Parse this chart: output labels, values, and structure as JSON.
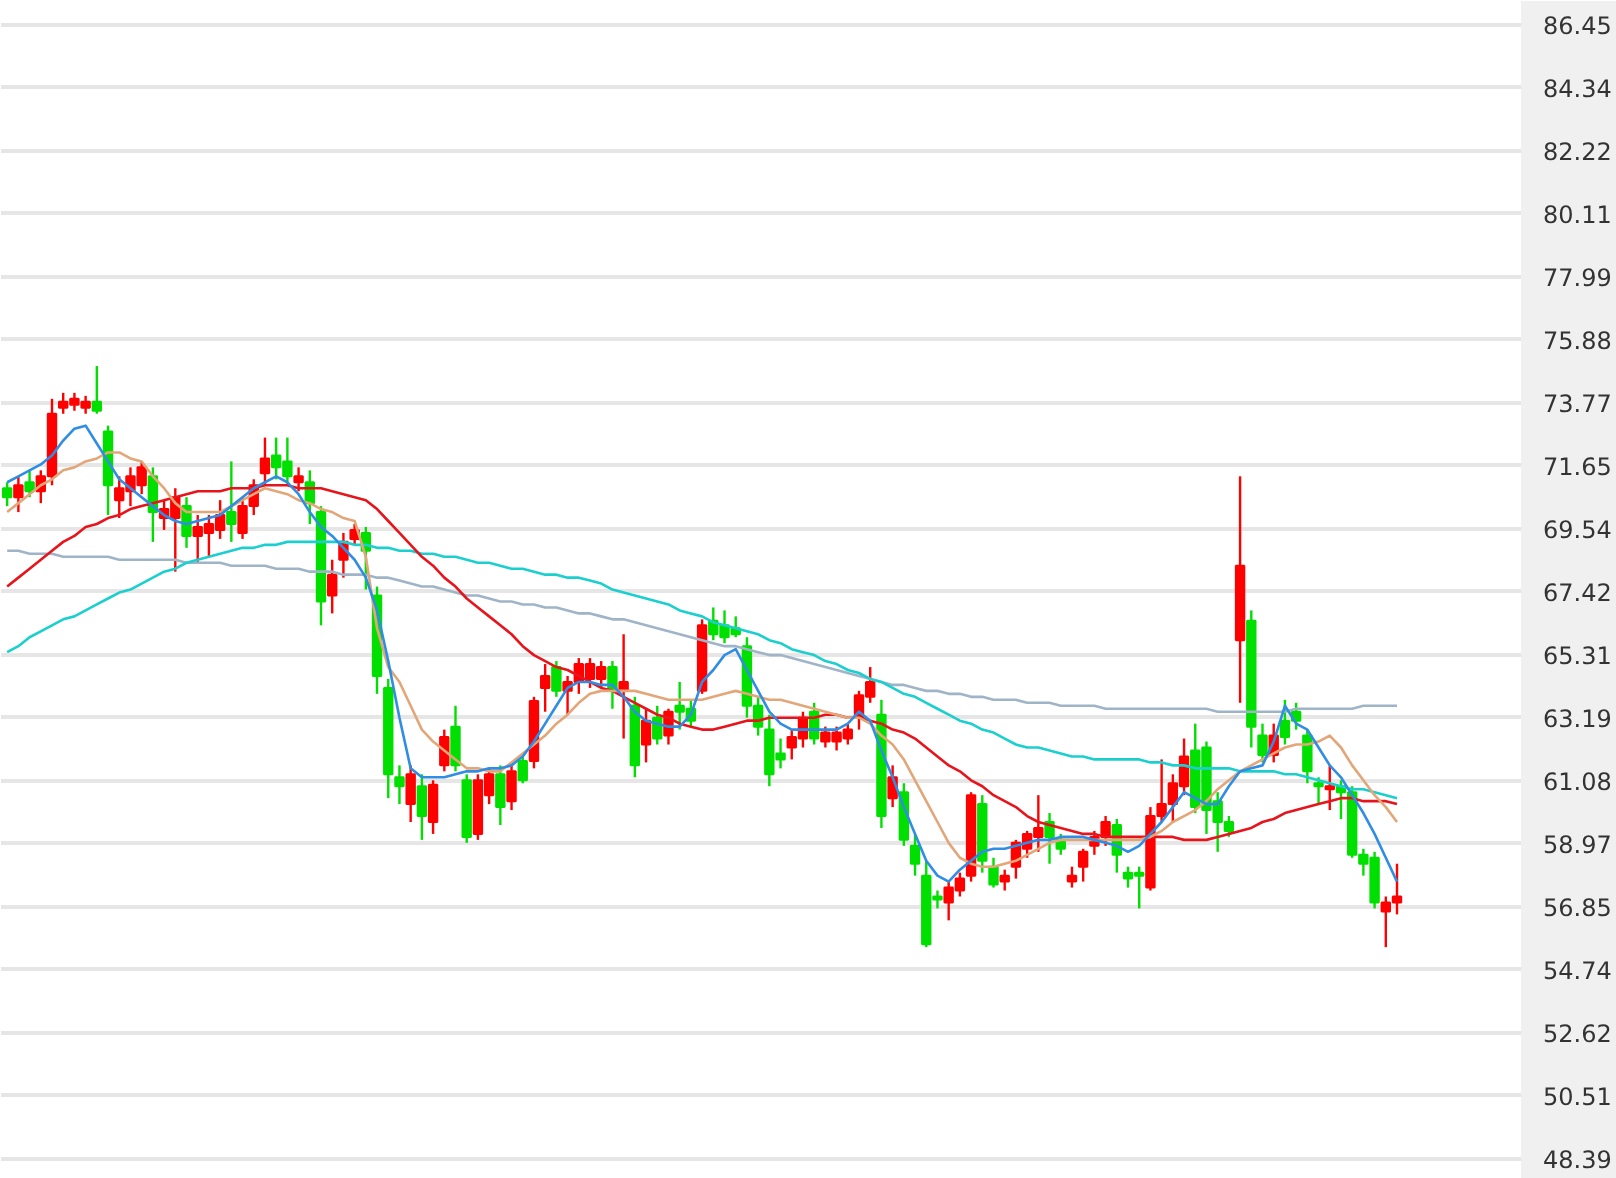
{
  "chart_data": {
    "type": "candlestick",
    "categories": [
      null,
      null,
      null,
      null,
      null,
      null,
      null,
      null,
      null,
      null,
      null,
      null,
      null,
      null,
      null,
      null,
      null,
      null,
      null,
      null,
      null,
      null,
      null,
      null,
      null,
      null,
      null,
      null,
      null,
      null,
      null,
      null,
      null,
      null,
      null,
      null,
      null,
      null,
      null,
      null,
      null,
      null,
      null,
      null,
      null,
      null,
      null,
      null,
      null,
      null,
      null,
      null,
      null,
      null,
      null,
      null,
      null,
      null,
      null,
      null,
      null,
      null,
      null,
      null,
      null,
      null,
      null,
      null,
      null,
      null,
      null,
      null,
      null,
      null,
      null,
      null,
      null,
      null,
      null,
      null,
      null,
      null,
      null,
      null,
      null,
      null,
      null,
      null,
      null,
      null,
      null,
      null,
      null,
      null,
      null,
      null,
      null,
      null,
      null,
      null,
      null,
      null,
      null,
      null,
      null,
      null,
      null,
      null,
      null,
      null,
      null,
      null,
      null,
      null,
      null,
      null,
      null,
      null,
      null,
      null,
      null,
      null,
      null,
      null,
      null
    ],
    "ohlc": [
      [
        70.9,
        71.1,
        70.3,
        70.6
      ],
      [
        70.6,
        71.3,
        70.1,
        71.0
      ],
      [
        71.1,
        71.5,
        70.6,
        70.8
      ],
      [
        70.8,
        71.5,
        70.4,
        71.3
      ],
      [
        71.3,
        73.9,
        71.0,
        73.4
      ],
      [
        73.6,
        74.1,
        73.4,
        73.8
      ],
      [
        73.7,
        74.1,
        73.5,
        73.9
      ],
      [
        73.6,
        74.0,
        73.4,
        73.8
      ],
      [
        73.8,
        75.0,
        73.4,
        73.5
      ],
      [
        72.8,
        73.0,
        70.0,
        71.0
      ],
      [
        70.5,
        71.3,
        69.9,
        70.9
      ],
      [
        70.8,
        71.6,
        70.3,
        71.3
      ],
      [
        71.0,
        71.8,
        70.7,
        71.6
      ],
      [
        71.3,
        71.6,
        69.1,
        70.1
      ],
      [
        69.9,
        70.5,
        69.5,
        70.2
      ],
      [
        69.9,
        70.9,
        68.1,
        70.6
      ],
      [
        70.3,
        70.6,
        68.9,
        69.3
      ],
      [
        69.3,
        70.0,
        68.4,
        69.6
      ],
      [
        69.4,
        70.0,
        68.6,
        69.7
      ],
      [
        69.5,
        70.5,
        69.2,
        70.0
      ],
      [
        70.1,
        71.8,
        69.1,
        69.7
      ],
      [
        69.4,
        70.6,
        69.2,
        70.3
      ],
      [
        70.3,
        71.2,
        70.0,
        71.0
      ],
      [
        71.4,
        72.6,
        71.0,
        71.9
      ],
      [
        72.0,
        72.6,
        71.2,
        71.6
      ],
      [
        71.8,
        72.6,
        71.0,
        71.3
      ],
      [
        71.1,
        71.6,
        70.8,
        71.3
      ],
      [
        71.1,
        71.5,
        69.7,
        70.4
      ],
      [
        70.1,
        70.3,
        66.3,
        67.1
      ],
      [
        67.3,
        68.5,
        66.7,
        68.0
      ],
      [
        68.5,
        69.4,
        67.9,
        69.1
      ],
      [
        69.2,
        69.7,
        69.0,
        69.5
      ],
      [
        69.4,
        69.6,
        67.5,
        68.8
      ],
      [
        67.3,
        67.6,
        64.0,
        64.6
      ],
      [
        64.2,
        64.5,
        60.5,
        61.3
      ],
      [
        61.2,
        61.6,
        60.3,
        60.9
      ],
      [
        60.3,
        61.6,
        59.7,
        61.3
      ],
      [
        60.9,
        61.3,
        59.1,
        59.9
      ],
      [
        59.7,
        61.1,
        59.3,
        60.95
      ],
      [
        61.6,
        62.8,
        61.4,
        62.55
      ],
      [
        62.9,
        63.6,
        61.4,
        61.6
      ],
      [
        61.1,
        61.3,
        59.0,
        59.2
      ],
      [
        59.3,
        61.3,
        59.1,
        61.1
      ],
      [
        60.6,
        61.5,
        60.3,
        61.3
      ],
      [
        61.3,
        61.6,
        59.6,
        60.2
      ],
      [
        60.4,
        61.6,
        60.1,
        61.4
      ],
      [
        61.75,
        62.0,
        61.0,
        61.1
      ],
      [
        61.75,
        63.9,
        61.5,
        63.76
      ],
      [
        64.2,
        65.0,
        63.4,
        64.6
      ],
      [
        64.9,
        65.1,
        63.9,
        64.1
      ],
      [
        64.1,
        64.6,
        63.3,
        64.4
      ],
      [
        64.4,
        65.2,
        64.0,
        65.0
      ],
      [
        64.5,
        65.2,
        64.2,
        65.0
      ],
      [
        64.5,
        65.1,
        64.2,
        64.9
      ],
      [
        64.9,
        65.1,
        63.5,
        64.1
      ],
      [
        64.1,
        66.0,
        62.5,
        64.4
      ],
      [
        63.6,
        63.9,
        61.2,
        61.6
      ],
      [
        62.3,
        63.5,
        61.7,
        63.1
      ],
      [
        63.2,
        63.6,
        62.3,
        62.5
      ],
      [
        62.6,
        63.5,
        62.3,
        63.4
      ],
      [
        63.6,
        64.4,
        62.8,
        63.4
      ],
      [
        63.5,
        63.8,
        62.9,
        63.1
      ],
      [
        64.1,
        66.5,
        64.0,
        66.3
      ],
      [
        66.45,
        66.9,
        65.8,
        66.0
      ],
      [
        66.3,
        66.8,
        65.7,
        65.9
      ],
      [
        66.2,
        66.6,
        65.9,
        66.0
      ],
      [
        65.6,
        65.9,
        63.2,
        63.6
      ],
      [
        63.6,
        63.9,
        62.6,
        62.9
      ],
      [
        62.8,
        63.3,
        60.9,
        61.3
      ],
      [
        62.0,
        62.5,
        61.5,
        61.8
      ],
      [
        62.2,
        62.8,
        61.8,
        62.55
      ],
      [
        62.5,
        63.4,
        62.2,
        63.2
      ],
      [
        63.4,
        63.7,
        62.3,
        62.5
      ],
      [
        62.4,
        62.9,
        62.2,
        62.7
      ],
      [
        62.4,
        62.9,
        62.1,
        62.7
      ],
      [
        62.5,
        63.0,
        62.3,
        62.8
      ],
      [
        63.2,
        64.1,
        62.8,
        63.95
      ],
      [
        63.9,
        64.9,
        63.7,
        64.4
      ],
      [
        63.3,
        63.8,
        59.5,
        59.9
      ],
      [
        60.5,
        61.6,
        60.2,
        61.2
      ],
      [
        60.7,
        61.0,
        58.9,
        59.1
      ],
      [
        58.9,
        59.3,
        57.9,
        58.3
      ],
      [
        57.9,
        58.4,
        55.5,
        55.6
      ],
      [
        57.2,
        57.4,
        56.8,
        57.1
      ],
      [
        57.0,
        57.7,
        56.4,
        57.5
      ],
      [
        57.4,
        58.0,
        57.2,
        57.8
      ],
      [
        57.9,
        60.7,
        57.7,
        60.6
      ],
      [
        60.3,
        60.6,
        58.0,
        58.4
      ],
      [
        58.2,
        58.5,
        57.5,
        57.6
      ],
      [
        57.7,
        58.1,
        57.4,
        57.9
      ],
      [
        58.2,
        59.1,
        57.8,
        59.0
      ],
      [
        58.8,
        59.4,
        58.5,
        59.3
      ],
      [
        59.2,
        60.6,
        58.7,
        59.5
      ],
      [
        59.7,
        60.0,
        58.3,
        59.2
      ],
      [
        59.1,
        59.3,
        58.6,
        58.8
      ],
      [
        57.7,
        58.2,
        57.5,
        57.9
      ],
      [
        58.2,
        58.8,
        57.7,
        58.7
      ],
      [
        58.9,
        59.4,
        58.6,
        59.2
      ],
      [
        59.2,
        59.9,
        58.9,
        59.7
      ],
      [
        59.6,
        59.8,
        58.0,
        58.6
      ],
      [
        58.0,
        58.2,
        57.5,
        57.8
      ],
      [
        58.0,
        58.2,
        56.8,
        57.9
      ],
      [
        57.5,
        60.2,
        57.4,
        59.9
      ],
      [
        59.9,
        61.8,
        59.7,
        60.3
      ],
      [
        60.3,
        61.3,
        59.7,
        61.0
      ],
      [
        60.9,
        62.5,
        60.6,
        61.9
      ],
      [
        62.1,
        63.0,
        60.0,
        60.2
      ],
      [
        62.2,
        62.4,
        59.3,
        60.1
      ],
      [
        60.4,
        60.7,
        58.7,
        59.7
      ],
      [
        59.7,
        59.9,
        59.2,
        59.4
      ],
      [
        65.8,
        71.3,
        63.7,
        68.3
      ],
      [
        66.45,
        66.8,
        62.2,
        62.9
      ],
      [
        62.6,
        63.0,
        61.7,
        61.95
      ],
      [
        61.95,
        63.0,
        61.7,
        62.6
      ],
      [
        63.1,
        63.8,
        62.3,
        62.55
      ],
      [
        63.4,
        63.7,
        62.8,
        63.1
      ],
      [
        62.6,
        62.8,
        61.0,
        61.4
      ],
      [
        61.0,
        61.2,
        60.3,
        60.9
      ],
      [
        60.8,
        61.6,
        60.1,
        60.9
      ],
      [
        60.9,
        61.1,
        59.8,
        60.7
      ],
      [
        60.7,
        60.9,
        58.5,
        58.6
      ],
      [
        58.6,
        58.8,
        57.9,
        58.3
      ],
      [
        58.5,
        58.7,
        56.8,
        57.0
      ],
      [
        56.7,
        57.2,
        55.5,
        57.0
      ],
      [
        57.0,
        58.3,
        56.6,
        57.2
      ]
    ],
    "colors": [
      "#00e000",
      "#ff0000",
      "#00e000",
      "#ff0000",
      "#ff0000",
      "#ff0000",
      "#ff0000",
      "#ff0000",
      "#00e000",
      "#00e000",
      "#ff0000",
      "#ff0000",
      "#ff0000",
      "#00e000",
      "#ff0000",
      "#ff0000",
      "#00e000",
      "#ff0000",
      "#ff0000",
      "#ff0000",
      "#00e000",
      "#ff0000",
      "#ff0000",
      "#ff0000",
      "#00e000",
      "#00e000",
      "#ff0000",
      "#00e000",
      "#00e000",
      "#ff0000",
      "#ff0000",
      "#ff0000",
      "#00e000",
      "#00e000",
      "#00e000",
      "#00e000",
      "#ff0000",
      "#00e000",
      "#ff0000",
      "#ff0000",
      "#00e000",
      "#00e000",
      "#ff0000",
      "#ff0000",
      "#00e000",
      "#ff0000",
      "#00e000",
      "#ff0000",
      "#ff0000",
      "#00e000",
      "#ff0000",
      "#ff0000",
      "#ff0000",
      "#ff0000",
      "#00e000",
      "#ff0000",
      "#00e000",
      "#ff0000",
      "#00e000",
      "#ff0000",
      "#00e000",
      "#00e000",
      "#ff0000",
      "#00e000",
      "#00e000",
      "#00e000",
      "#00e000",
      "#00e000",
      "#00e000",
      "#00e000",
      "#ff0000",
      "#ff0000",
      "#00e000",
      "#ff0000",
      "#ff0000",
      "#ff0000",
      "#ff0000",
      "#ff0000",
      "#00e000",
      "#ff0000",
      "#00e000",
      "#00e000",
      "#00e000",
      "#00e000",
      "#ff0000",
      "#ff0000",
      "#ff0000",
      "#00e000",
      "#00e000",
      "#ff0000",
      "#ff0000",
      "#ff0000",
      "#ff0000",
      "#00e000",
      "#00e000",
      "#ff0000",
      "#ff0000",
      "#ff0000",
      "#ff0000",
      "#00e000",
      "#00e000",
      "#00e000",
      "#ff0000",
      "#ff0000",
      "#ff0000",
      "#ff0000",
      "#00e000",
      "#00e000",
      "#00e000",
      "#00e000",
      "#ff0000",
      "#00e000",
      "#00e000",
      "#ff0000",
      "#00e000",
      "#00e000",
      "#00e000",
      "#00e000",
      "#ff0000",
      "#00e000",
      "#00e000",
      "#00e000",
      "#00e000",
      "#ff0000",
      "#ff0000"
    ],
    "series": [
      {
        "type": "line",
        "color": "#a0b4c8",
        "values": [
          68.8,
          68.8,
          68.7,
          68.7,
          68.7,
          68.6,
          68.6,
          68.6,
          68.6,
          68.6,
          68.5,
          68.5,
          68.5,
          68.5,
          68.5,
          68.5,
          68.4,
          68.4,
          68.4,
          68.4,
          68.3,
          68.3,
          68.3,
          68.3,
          68.2,
          68.2,
          68.2,
          68.1,
          68.1,
          68.1,
          68.0,
          68.0,
          68.0,
          67.9,
          67.9,
          67.8,
          67.7,
          67.6,
          67.6,
          67.5,
          67.4,
          67.3,
          67.3,
          67.2,
          67.1,
          67.1,
          67.0,
          67.0,
          66.9,
          66.9,
          66.8,
          66.7,
          66.7,
          66.6,
          66.5,
          66.5,
          66.4,
          66.3,
          66.2,
          66.1,
          66.0,
          65.9,
          65.8,
          65.7,
          65.6,
          65.6,
          65.5,
          65.4,
          65.3,
          65.3,
          65.2,
          65.1,
          65.0,
          64.9,
          64.8,
          64.7,
          64.6,
          64.5,
          64.4,
          64.3,
          64.3,
          64.2,
          64.1,
          64.1,
          64.0,
          64.0,
          63.9,
          63.9,
          63.8,
          63.8,
          63.8,
          63.7,
          63.7,
          63.7,
          63.6,
          63.6,
          63.6,
          63.6,
          63.5,
          63.5,
          63.5,
          63.5,
          63.5,
          63.5,
          63.5,
          63.5,
          63.5,
          63.5,
          63.4,
          63.4,
          63.4,
          63.4,
          63.4,
          63.4,
          63.4,
          63.5,
          63.5,
          63.5,
          63.5,
          63.5,
          63.5,
          63.6,
          63.6,
          63.6,
          63.6
        ]
      },
      {
        "type": "line",
        "color": "#1ccfcf",
        "values": [
          65.4,
          65.6,
          65.9,
          66.1,
          66.3,
          66.5,
          66.6,
          66.8,
          67.0,
          67.2,
          67.4,
          67.5,
          67.7,
          67.9,
          68.1,
          68.2,
          68.4,
          68.5,
          68.6,
          68.7,
          68.8,
          68.9,
          68.9,
          69.0,
          69.0,
          69.1,
          69.1,
          69.1,
          69.1,
          69.1,
          69.1,
          69.0,
          69.0,
          68.9,
          68.9,
          68.8,
          68.8,
          68.7,
          68.7,
          68.6,
          68.6,
          68.5,
          68.4,
          68.4,
          68.3,
          68.2,
          68.2,
          68.1,
          68.0,
          68.0,
          67.9,
          67.9,
          67.8,
          67.7,
          67.5,
          67.4,
          67.3,
          67.2,
          67.1,
          67.0,
          66.8,
          66.7,
          66.6,
          66.4,
          66.3,
          66.2,
          66.1,
          66.0,
          65.8,
          65.7,
          65.5,
          65.4,
          65.3,
          65.1,
          65.0,
          64.8,
          64.7,
          64.5,
          64.4,
          64.2,
          64.0,
          63.9,
          63.7,
          63.5,
          63.3,
          63.1,
          63.0,
          62.8,
          62.7,
          62.5,
          62.3,
          62.2,
          62.2,
          62.1,
          62.0,
          61.9,
          61.9,
          61.8,
          61.8,
          61.8,
          61.8,
          61.8,
          61.7,
          61.7,
          61.6,
          61.6,
          61.5,
          61.5,
          61.5,
          61.5,
          61.4,
          61.4,
          61.4,
          61.4,
          61.3,
          61.3,
          61.2,
          61.1,
          61.0,
          60.9,
          60.8,
          60.8,
          60.7,
          60.6,
          60.5
        ]
      },
      {
        "type": "line",
        "color": "#e8141c",
        "values": [
          67.6,
          67.9,
          68.2,
          68.5,
          68.8,
          69.1,
          69.3,
          69.6,
          69.7,
          69.9,
          70.0,
          70.2,
          70.3,
          70.4,
          70.5,
          70.6,
          70.7,
          70.8,
          70.8,
          70.8,
          70.9,
          70.9,
          70.9,
          71.0,
          71.0,
          71.0,
          70.9,
          70.9,
          70.9,
          70.8,
          70.7,
          70.6,
          70.5,
          70.2,
          69.8,
          69.4,
          69.0,
          68.6,
          68.3,
          67.9,
          67.6,
          67.2,
          66.9,
          66.6,
          66.3,
          66.0,
          65.6,
          65.3,
          65.1,
          64.9,
          64.8,
          64.6,
          64.4,
          64.2,
          64.1,
          63.9,
          63.7,
          63.5,
          63.3,
          63.2,
          63.0,
          62.9,
          62.8,
          62.8,
          62.9,
          63.0,
          63.1,
          63.1,
          63.2,
          63.2,
          63.2,
          63.2,
          63.2,
          63.3,
          63.3,
          63.2,
          63.2,
          63.1,
          63.0,
          62.8,
          62.7,
          62.5,
          62.2,
          61.9,
          61.6,
          61.4,
          61.1,
          60.9,
          60.6,
          60.4,
          60.2,
          59.9,
          59.7,
          59.6,
          59.5,
          59.4,
          59.3,
          59.3,
          59.2,
          59.2,
          59.2,
          59.2,
          59.2,
          59.2,
          59.2,
          59.1,
          59.1,
          59.1,
          59.2,
          59.3,
          59.4,
          59.5,
          59.7,
          59.8,
          60.0,
          60.1,
          60.2,
          60.3,
          60.4,
          60.5,
          60.5,
          60.4,
          60.4,
          60.4,
          60.3
        ]
      },
      {
        "type": "line",
        "color": "#e3a678",
        "values": [
          70.1,
          70.4,
          70.7,
          71.0,
          71.2,
          71.5,
          71.6,
          71.8,
          71.9,
          72.1,
          72.1,
          71.9,
          71.8,
          71.3,
          70.9,
          70.4,
          70.1,
          70.1,
          70.1,
          70.1,
          70.3,
          70.5,
          70.7,
          70.9,
          70.8,
          70.7,
          70.5,
          70.4,
          70.2,
          70.1,
          69.9,
          69.8,
          68.6,
          66.2,
          64.9,
          64.4,
          63.6,
          62.8,
          62.4,
          62.1,
          61.8,
          61.5,
          61.5,
          61.4,
          61.4,
          61.7,
          62.0,
          62.3,
          62.6,
          63.0,
          63.3,
          63.7,
          64.0,
          64.1,
          64.1,
          64.1,
          64.1,
          64.0,
          63.9,
          63.8,
          63.8,
          63.8,
          63.8,
          63.9,
          64.0,
          64.1,
          64.0,
          63.9,
          63.8,
          63.8,
          63.7,
          63.6,
          63.5,
          63.4,
          63.3,
          63.2,
          63.2,
          63.0,
          62.6,
          62.3,
          61.8,
          61.1,
          60.4,
          59.7,
          59.0,
          58.5,
          58.3,
          58.2,
          58.2,
          58.3,
          58.4,
          58.6,
          58.8,
          59.0,
          59.1,
          59.1,
          59.1,
          59.1,
          59.1,
          59.1,
          59.1,
          59.1,
          59.2,
          59.4,
          59.7,
          59.9,
          60.1,
          60.4,
          60.8,
          61.1,
          61.4,
          61.6,
          61.8,
          62.0,
          62.2,
          62.3,
          62.3,
          62.4,
          62.6,
          62.2,
          61.6,
          61.1,
          60.6,
          60.2,
          59.7
        ]
      },
      {
        "type": "line",
        "color": "#2f8de4",
        "values": [
          71.1,
          71.3,
          71.5,
          71.7,
          72.0,
          72.5,
          72.9,
          73.0,
          72.4,
          71.8,
          71.2,
          70.9,
          70.6,
          70.3,
          70.0,
          69.8,
          69.7,
          69.8,
          69.9,
          70.0,
          70.3,
          70.6,
          70.9,
          71.1,
          71.3,
          71.1,
          70.7,
          70.1,
          69.6,
          69.3,
          68.9,
          68.5,
          67.9,
          66.8,
          65.1,
          63.2,
          61.5,
          61.2,
          61.2,
          61.2,
          61.3,
          61.4,
          61.4,
          61.5,
          61.5,
          61.6,
          61.9,
          62.4,
          63.0,
          63.6,
          64.2,
          64.4,
          64.4,
          64.3,
          64.3,
          63.9,
          63.4,
          63.1,
          63.0,
          62.9,
          62.9,
          63.3,
          64.4,
          64.8,
          65.3,
          65.5,
          64.8,
          64.1,
          63.4,
          63.0,
          62.8,
          62.8,
          62.8,
          62.8,
          62.8,
          63.0,
          63.4,
          63.1,
          62.1,
          61.2,
          60.2,
          59.3,
          58.4,
          57.9,
          57.7,
          58.1,
          58.4,
          58.7,
          58.8,
          58.8,
          58.9,
          59.0,
          59.1,
          59.1,
          59.2,
          59.2,
          59.2,
          59.1,
          59.0,
          58.9,
          58.7,
          58.9,
          59.3,
          59.7,
          60.2,
          60.7,
          60.5,
          60.3,
          60.3,
          60.9,
          61.4,
          61.5,
          61.6,
          62.4,
          63.6,
          63.0,
          62.8,
          62.2,
          61.6,
          61.2,
          60.6,
          60.0,
          59.3,
          58.5,
          57.7
        ]
      }
    ],
    "ylim": [
      47.72,
      87.25
    ],
    "yticks": [
      48.39,
      50.51,
      52.62,
      54.74,
      56.85,
      58.97,
      61.08,
      63.19,
      65.31,
      67.42,
      69.54,
      71.65,
      73.77,
      75.88,
      77.99,
      80.11,
      82.22,
      84.34,
      86.45
    ],
    "grid": "y",
    "tick_labels": "y"
  }
}
